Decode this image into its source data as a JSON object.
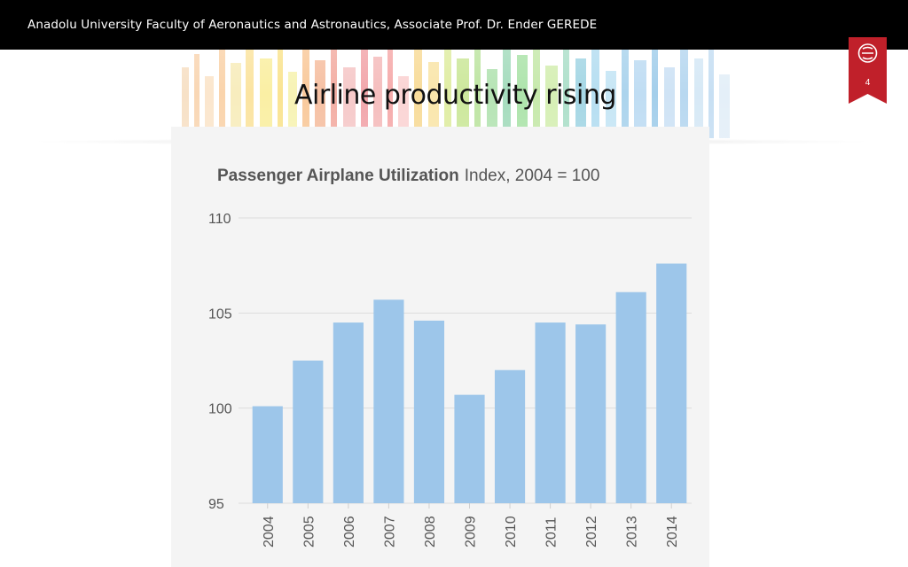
{
  "header": {
    "text": "Anadolu University Faculty of Aeronautics and Astronautics, Associate Prof. Dr. Ender GEREDE"
  },
  "slide": {
    "title": "Airline productivity rising",
    "page_number": "4"
  },
  "colors": {
    "bar": "#9dc6ea",
    "badge": "#c0202a",
    "grid": "#dcdcdc"
  },
  "chart_data": {
    "type": "bar",
    "title_bold": "Passenger Airplane Utilization",
    "title_rest": "Index, 2004 = 100",
    "categories": [
      "2004",
      "2005",
      "2006",
      "2007",
      "2008",
      "2009",
      "2010",
      "2011",
      "2012",
      "2013",
      "2014"
    ],
    "values": [
      100.1,
      102.5,
      104.5,
      105.7,
      104.6,
      100.7,
      102.0,
      104.5,
      104.4,
      106.1,
      107.6
    ],
    "ylim": [
      95,
      110
    ],
    "yticks": [
      "95",
      "100",
      "105",
      "110"
    ],
    "grid": true
  }
}
